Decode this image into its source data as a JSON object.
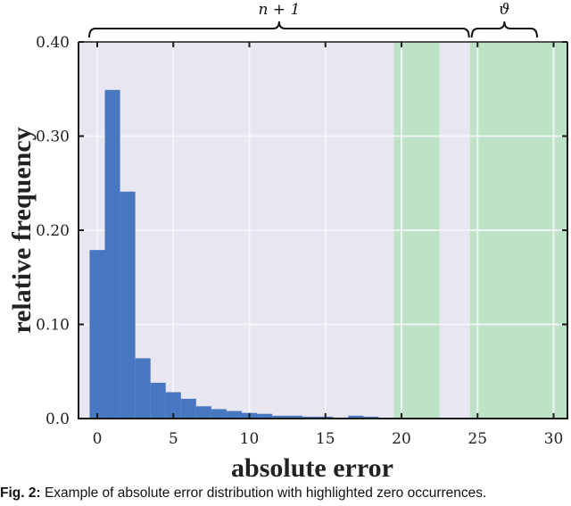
{
  "chart_data": {
    "type": "bar",
    "title": "",
    "xlabel": "absolute error",
    "ylabel": "relative frequency",
    "xlim": [
      -1.2,
      31.0
    ],
    "ylim": [
      0.0,
      0.4
    ],
    "xticks": [
      0,
      5,
      10,
      15,
      20,
      25,
      30
    ],
    "xtick_labels": [
      "0",
      "5",
      "10",
      "15",
      "20",
      "25",
      "30"
    ],
    "yticks": [
      0.0,
      0.1,
      0.2,
      0.3,
      0.4
    ],
    "ytick_labels": [
      "0.0",
      "0.10",
      "0.20",
      "0.30",
      "0.40"
    ],
    "grid": true,
    "bin_width": 1,
    "categories": [
      0,
      1,
      2,
      3,
      4,
      5,
      6,
      7,
      8,
      9,
      10,
      11,
      12,
      13,
      14,
      15,
      16,
      17,
      18
    ],
    "values": [
      0.179,
      0.349,
      0.241,
      0.064,
      0.038,
      0.028,
      0.021,
      0.013,
      0.01,
      0.008,
      0.006,
      0.005,
      0.003,
      0.003,
      0.002,
      0.002,
      0.001,
      0.003,
      0.002
    ],
    "highlighted_zero_regions": [
      {
        "x_start": 19.5,
        "x_end": 22.5
      },
      {
        "x_start": 24.5,
        "x_end": 31.0
      }
    ],
    "annotations": [
      {
        "type": "brace",
        "label": "n + 1",
        "x_start": -0.5,
        "x_end": 24.5
      },
      {
        "type": "brace",
        "label": "ϑ",
        "x_start": 24.5,
        "x_end": 29.5
      }
    ],
    "colors": {
      "bar": "#4677c0",
      "plot_background": "#e8e7f1",
      "highlight": "#bde3c6",
      "grid": "#f7f7fa"
    },
    "legend": null
  },
  "caption": {
    "label": "Fig. 2:",
    "text": " Example of absolute error distribution with highlighted zero occurrences."
  }
}
